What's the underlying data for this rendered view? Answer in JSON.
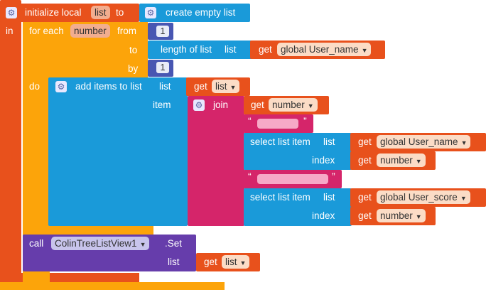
{
  "colors": {
    "variables": "#e8511c",
    "control": "#fca40a",
    "lists": "#1a9ad9",
    "math": "#4856b2",
    "text": "#d5256a",
    "procedures": "#663dab"
  },
  "icons": {
    "mutator": "gear-icon",
    "dropdown": "triangle-down-icon"
  },
  "init_local": {
    "label": "initialize local",
    "var_name": "list",
    "to_label": "to",
    "in_label": "in"
  },
  "create_empty_list": {
    "label": "create empty list"
  },
  "for_each": {
    "label": "for each",
    "var_name": "number",
    "from_label": "from",
    "from_value": "1",
    "to_label": "to",
    "by_label": "by",
    "by_value": "1",
    "do_label": "do"
  },
  "length_of_list": {
    "label": "length of list",
    "list_label": "list",
    "get_label": "get",
    "get_var": "global User_name"
  },
  "add_items": {
    "label": "add items to list",
    "list_label": "list",
    "item_label": "item",
    "get_label": "get",
    "get_var": "list"
  },
  "join": {
    "label": "join",
    "get1_label": "get",
    "get1_var": "number",
    "text1_quote_open": "“",
    "text1_quote_close": "”",
    "select1": {
      "label": "select list item",
      "list_label": "list",
      "index_label": "index",
      "get_list_label": "get",
      "get_list_var": "global User_name",
      "get_index_label": "get",
      "get_index_var": "number"
    },
    "text2_quote_open": "“",
    "text2_quote_close": "”",
    "select2": {
      "label": "select list item",
      "list_label": "list",
      "index_label": "index",
      "get_list_label": "get",
      "get_list_var": "global User_score",
      "get_index_label": "get",
      "get_index_var": "number"
    }
  },
  "call_set": {
    "call_label": "call",
    "component": "ColinTreeListView1",
    "method": ".Set",
    "list_label": "list",
    "get_label": "get",
    "get_var": "list"
  }
}
